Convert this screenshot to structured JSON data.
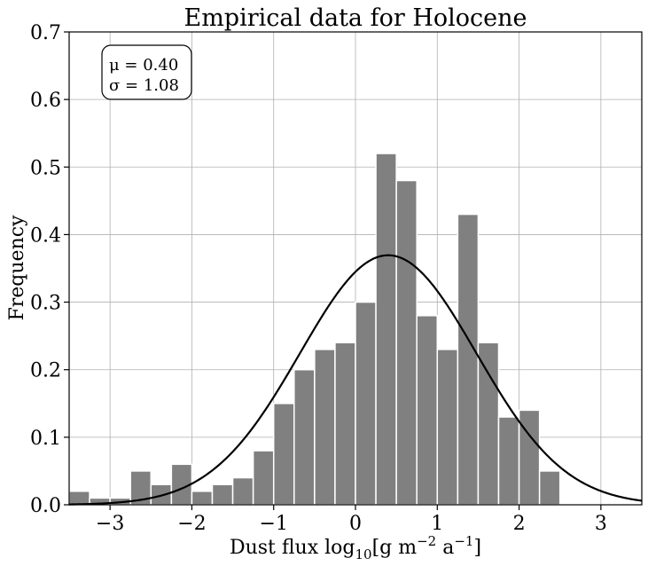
{
  "chart_data": {
    "type": "bar",
    "title": "Empirical data for Holocene",
    "xlabel": {
      "prefix": "Dust flux log",
      "sub": "10",
      "mid": "[g m",
      "sup1": "−2",
      "mid2": " a",
      "sup2": "−1",
      "suffix": "]"
    },
    "ylabel": "Frequency",
    "xlim": [
      -3.5,
      3.5
    ],
    "ylim": [
      0,
      0.7
    ],
    "xticks": [
      -3,
      -2,
      -1,
      0,
      1,
      2,
      3
    ],
    "xtick_labels": [
      "−3",
      "−2",
      "−1",
      "0",
      "1",
      "2",
      "3"
    ],
    "yticks": [
      0,
      0.1,
      0.2,
      0.3,
      0.4,
      0.5,
      0.6,
      0.7
    ],
    "ytick_labels": [
      "0.0",
      "0.1",
      "0.2",
      "0.3",
      "0.4",
      "0.5",
      "0.6",
      "0.7"
    ],
    "grid": true,
    "bar_color": "#808080",
    "bin_width": 0.25,
    "bins_start": [
      -3.5,
      -3.25,
      -3.0,
      -2.75,
      -2.5,
      -2.25,
      -2.0,
      -1.75,
      -1.5,
      -1.25,
      -1.0,
      -0.75,
      -0.5,
      -0.25,
      0.0,
      0.25,
      0.5,
      0.75,
      1.0,
      1.25,
      1.5,
      1.75,
      2.0,
      2.25
    ],
    "values": [
      0.02,
      0.01,
      0.01,
      0.05,
      0.03,
      0.06,
      0.02,
      0.03,
      0.04,
      0.08,
      0.15,
      0.2,
      0.23,
      0.24,
      0.3,
      0.52,
      0.48,
      0.28,
      0.23,
      0.43,
      0.24,
      0.13,
      0.14,
      0.05
    ],
    "fit": {
      "type": "normal",
      "mu": 0.4,
      "sigma": 1.08,
      "color": "#000000"
    },
    "stats_box": {
      "mu_label": "μ = 0.40",
      "sigma_label": "σ = 1.08",
      "position": "top-left"
    }
  }
}
